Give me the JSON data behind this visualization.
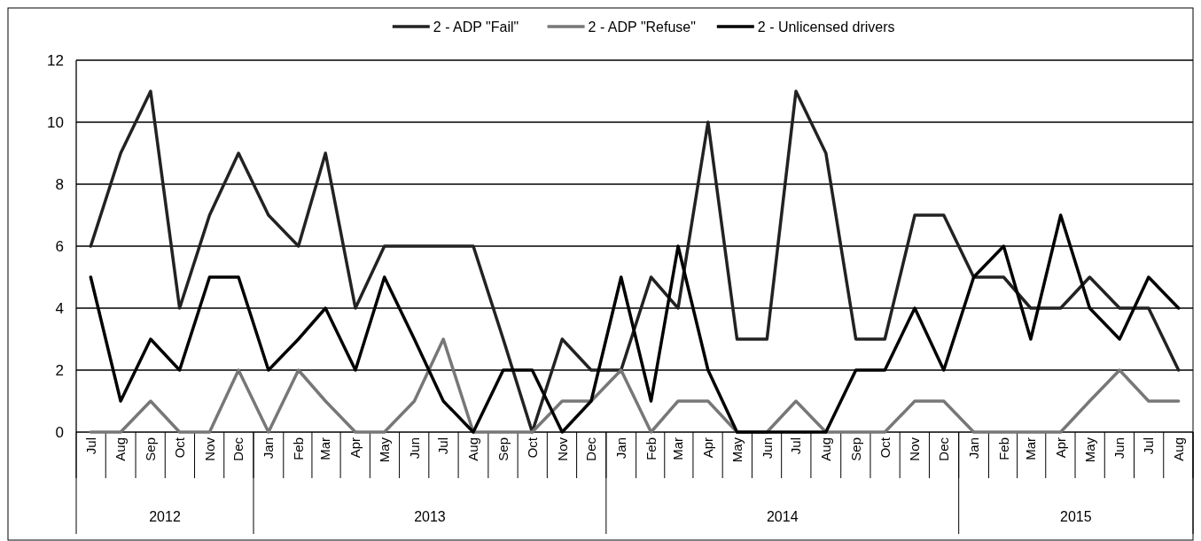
{
  "chart_data": {
    "type": "line",
    "x": [
      "2012-07",
      "2012-08",
      "2012-09",
      "2012-10",
      "2012-11",
      "2012-12",
      "2013-01",
      "2013-02",
      "2013-03",
      "2013-04",
      "2013-05",
      "2013-06",
      "2013-07",
      "2013-08",
      "2013-09",
      "2013-10",
      "2013-11",
      "2013-12",
      "2014-01",
      "2014-02",
      "2014-03",
      "2014-04",
      "2014-05",
      "2014-06",
      "2014-07",
      "2014-08",
      "2014-09",
      "2014-10",
      "2014-11",
      "2014-12",
      "2015-01",
      "2015-02",
      "2015-03",
      "2015-04",
      "2015-05",
      "2015-06",
      "2015-07",
      "2015-08"
    ],
    "xticks": [
      {
        "value": "2012-07",
        "label": "Jul"
      },
      {
        "value": "2012-08",
        "label": "Aug"
      },
      {
        "value": "2012-09",
        "label": "Sep"
      },
      {
        "value": "2012-10",
        "label": "Oct"
      },
      {
        "value": "2012-11",
        "label": "Nov"
      },
      {
        "value": "2012-12",
        "label": "Dec"
      },
      {
        "value": "2013-01",
        "label": "Jan"
      },
      {
        "value": "2013-02",
        "label": "Feb"
      },
      {
        "value": "2013-03",
        "label": "Mar"
      },
      {
        "value": "2013-04",
        "label": "Apr"
      },
      {
        "value": "2013-05",
        "label": "May"
      },
      {
        "value": "2013-06",
        "label": "Jun"
      },
      {
        "value": "2013-07",
        "label": "Jul"
      },
      {
        "value": "2013-08",
        "label": "Aug"
      },
      {
        "value": "2013-09",
        "label": "Sep"
      },
      {
        "value": "2013-10",
        "label": "Oct"
      },
      {
        "value": "2013-11",
        "label": "Nov"
      },
      {
        "value": "2013-12",
        "label": "Dec"
      },
      {
        "value": "2014-01",
        "label": "Jan"
      },
      {
        "value": "2014-02",
        "label": "Feb"
      },
      {
        "value": "2014-03",
        "label": "Mar"
      },
      {
        "value": "2014-04",
        "label": "Apr"
      },
      {
        "value": "2014-05",
        "label": "May"
      },
      {
        "value": "2014-06",
        "label": "Jun"
      },
      {
        "value": "2014-07",
        "label": "Jul"
      },
      {
        "value": "2014-08",
        "label": "Aug"
      },
      {
        "value": "2014-09",
        "label": "Sep"
      },
      {
        "value": "2014-10",
        "label": "Oct"
      },
      {
        "value": "2014-11",
        "label": "Nov"
      },
      {
        "value": "2014-12",
        "label": "Dec"
      },
      {
        "value": "2015-01",
        "label": "Jan"
      },
      {
        "value": "2015-02",
        "label": "Feb"
      },
      {
        "value": "2015-03",
        "label": "Mar"
      },
      {
        "value": "2015-04",
        "label": "Apr"
      },
      {
        "value": "2015-05",
        "label": "May"
      },
      {
        "value": "2015-06",
        "label": "Jun"
      },
      {
        "value": "2015-07",
        "label": "Jul"
      },
      {
        "value": "2015-08",
        "label": "Aug"
      }
    ],
    "annotations": [
      "2012",
      "2013",
      "2014",
      "2015"
    ],
    "xlim": [
      "2012-06-16",
      "2015-08-16"
    ],
    "series": [
      {
        "name": "2 - ADP \"Fail\"",
        "color": "#222222",
        "values": [
          6,
          9,
          11,
          4,
          7,
          9,
          7,
          6,
          9,
          4,
          6,
          6,
          6,
          6,
          3,
          0,
          3,
          2,
          2,
          5,
          4,
          10,
          3,
          3,
          11,
          9,
          3,
          3,
          7,
          7,
          5,
          5,
          4,
          4,
          5,
          4,
          4,
          2
        ]
      },
      {
        "name": "2 - ADP \"Refuse\"",
        "color": "#777777",
        "values": [
          0,
          0,
          1,
          0,
          0,
          2,
          0,
          2,
          1,
          0,
          0,
          1,
          3,
          0,
          0,
          0,
          1,
          1,
          2,
          0,
          1,
          1,
          0,
          0,
          1,
          0,
          0,
          0,
          1,
          1,
          0,
          0,
          0,
          0,
          1,
          2,
          1,
          1
        ]
      },
      {
        "name": "2 - Unlicensed drivers",
        "color": "#000000",
        "values": [
          5,
          1,
          3,
          2,
          5,
          5,
          2,
          3,
          4,
          2,
          5,
          3,
          1,
          0,
          2,
          2,
          0,
          1,
          5,
          1,
          6,
          2,
          0,
          0,
          0,
          0,
          2,
          2,
          4,
          2,
          5,
          6,
          3,
          7,
          4,
          3,
          5,
          4
        ]
      }
    ],
    "ylim": [
      0,
      12
    ],
    "yticks": [
      0,
      2,
      4,
      6,
      8,
      10,
      12
    ],
    "grid": "y",
    "legend": "top",
    "marker": "none",
    "line_style": "solid"
  }
}
